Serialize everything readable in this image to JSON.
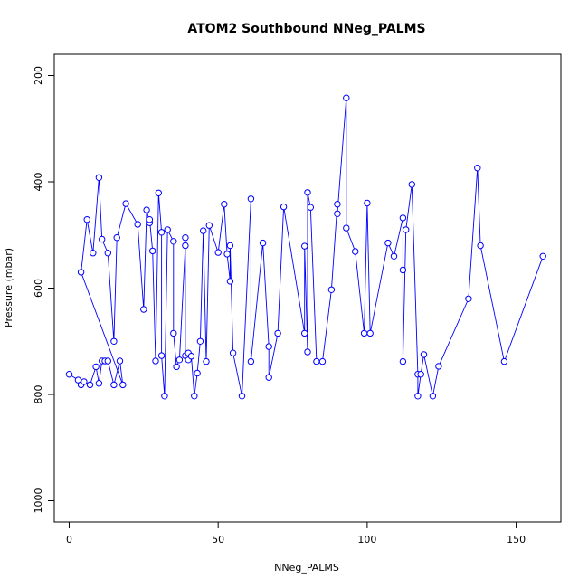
{
  "chart_data": {
    "type": "line",
    "title": "ATOM2 Southbound NNeg_PALMS",
    "xlabel": "NNeg_PALMS",
    "ylabel": "Pressure (mbar)",
    "xlim": [
      -5,
      165
    ],
    "ylim": [
      1040,
      160
    ],
    "y_reversed": true,
    "xticks": [
      0,
      50,
      100,
      150
    ],
    "yticks": [
      200,
      400,
      600,
      800,
      1000
    ],
    "grid": false,
    "legend": "none",
    "color": "#0000ff",
    "marker": "open-circle",
    "series": [
      {
        "values": [
          {
            "x": 0,
            "y": 762
          },
          {
            "x": 3,
            "y": 773
          },
          {
            "x": 4,
            "y": 782
          },
          {
            "x": 5,
            "y": 776
          },
          {
            "x": 7,
            "y": 782
          },
          {
            "x": 9,
            "y": 748
          },
          {
            "x": 10,
            "y": 779
          },
          {
            "x": 11,
            "y": 737
          },
          {
            "x": 12,
            "y": 737
          },
          {
            "x": 13,
            "y": 737
          },
          {
            "x": 15,
            "y": 782
          },
          {
            "x": 17,
            "y": 737
          },
          {
            "x": 18,
            "y": 782
          },
          {
            "x": 4,
            "y": 570
          },
          {
            "x": 6,
            "y": 471
          },
          {
            "x": 8,
            "y": 534
          },
          {
            "x": 10,
            "y": 392
          },
          {
            "x": 11,
            "y": 508
          },
          {
            "x": 13,
            "y": 534
          },
          {
            "x": 15,
            "y": 700
          },
          {
            "x": 16,
            "y": 505
          },
          {
            "x": 19,
            "y": 441
          },
          {
            "x": 23,
            "y": 480
          },
          {
            "x": 25,
            "y": 640
          },
          {
            "x": 26,
            "y": 453
          },
          {
            "x": 27,
            "y": 477
          },
          {
            "x": 27,
            "y": 471
          },
          {
            "x": 28,
            "y": 530
          },
          {
            "x": 29,
            "y": 737
          },
          {
            "x": 30,
            "y": 421
          },
          {
            "x": 31,
            "y": 495
          },
          {
            "x": 31,
            "y": 727
          },
          {
            "x": 32,
            "y": 803
          },
          {
            "x": 33,
            "y": 490
          },
          {
            "x": 35,
            "y": 512
          },
          {
            "x": 35,
            "y": 685
          },
          {
            "x": 36,
            "y": 748
          },
          {
            "x": 37,
            "y": 735
          },
          {
            "x": 39,
            "y": 520
          },
          {
            "x": 39,
            "y": 505
          },
          {
            "x": 39,
            "y": 727
          },
          {
            "x": 40,
            "y": 735
          },
          {
            "x": 40,
            "y": 722
          },
          {
            "x": 41,
            "y": 728
          },
          {
            "x": 42,
            "y": 803
          },
          {
            "x": 43,
            "y": 760
          },
          {
            "x": 44,
            "y": 700
          },
          {
            "x": 45,
            "y": 492
          },
          {
            "x": 46,
            "y": 738
          },
          {
            "x": 47,
            "y": 482
          },
          {
            "x": 50,
            "y": 533
          },
          {
            "x": 52,
            "y": 442
          },
          {
            "x": 53,
            "y": 536
          },
          {
            "x": 54,
            "y": 587
          },
          {
            "x": 54,
            "y": 520
          },
          {
            "x": 55,
            "y": 722
          },
          {
            "x": 58,
            "y": 803
          },
          {
            "x": 61,
            "y": 432
          },
          {
            "x": 61,
            "y": 738
          },
          {
            "x": 65,
            "y": 515
          },
          {
            "x": 67,
            "y": 710
          },
          {
            "x": 67,
            "y": 768
          },
          {
            "x": 70,
            "y": 685
          },
          {
            "x": 72,
            "y": 447
          },
          {
            "x": 79,
            "y": 685
          },
          {
            "x": 79,
            "y": 521
          },
          {
            "x": 80,
            "y": 720
          },
          {
            "x": 80,
            "y": 420
          },
          {
            "x": 81,
            "y": 448
          },
          {
            "x": 83,
            "y": 738
          },
          {
            "x": 85,
            "y": 738
          },
          {
            "x": 88,
            "y": 603
          },
          {
            "x": 90,
            "y": 442
          },
          {
            "x": 90,
            "y": 460
          },
          {
            "x": 93,
            "y": 242
          },
          {
            "x": 93,
            "y": 487
          },
          {
            "x": 96,
            "y": 531
          },
          {
            "x": 99,
            "y": 685
          },
          {
            "x": 100,
            "y": 440
          },
          {
            "x": 101,
            "y": 685
          },
          {
            "x": 107,
            "y": 515
          },
          {
            "x": 109,
            "y": 540
          },
          {
            "x": 112,
            "y": 468
          },
          {
            "x": 112,
            "y": 566
          },
          {
            "x": 112,
            "y": 738
          },
          {
            "x": 113,
            "y": 490
          },
          {
            "x": 115,
            "y": 405
          },
          {
            "x": 117,
            "y": 762
          },
          {
            "x": 117,
            "y": 803
          },
          {
            "x": 118,
            "y": 762
          },
          {
            "x": 119,
            "y": 725
          },
          {
            "x": 122,
            "y": 803
          },
          {
            "x": 124,
            "y": 747
          },
          {
            "x": 134,
            "y": 620
          },
          {
            "x": 137,
            "y": 374
          },
          {
            "x": 138,
            "y": 520
          },
          {
            "x": 146,
            "y": 738
          },
          {
            "x": 159,
            "y": 540
          }
        ]
      }
    ]
  }
}
